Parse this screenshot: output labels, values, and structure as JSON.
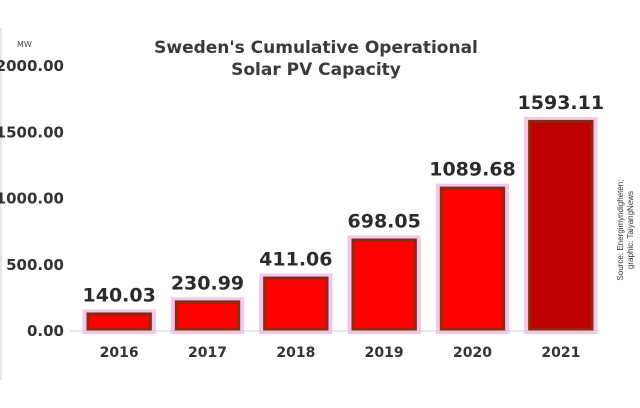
{
  "chart_data": {
    "type": "bar",
    "title": "Sweden's Cumulative Operational Solar PV Capacity",
    "title_lines": [
      "Sweden's Cumulative Operational",
      "Solar PV Capacity"
    ],
    "xlabel": "",
    "ylabel": "MW",
    "ylim": [
      0,
      2000
    ],
    "yticks": [
      "0.00",
      "500.00",
      "1000.00",
      "1500.00",
      "2000.00"
    ],
    "ytick_values": [
      0,
      500,
      1000,
      1500,
      2000
    ],
    "grid": false,
    "legend": "none",
    "categories": [
      "2016",
      "2017",
      "2018",
      "2019",
      "2020",
      "2021"
    ],
    "values": [
      140.03,
      230.99,
      411.06,
      698.05,
      1089.68,
      1593.11
    ],
    "data_labels": [
      "140.03",
      "230.99",
      "411.06",
      "698.05",
      "1089.68",
      "1593.11"
    ],
    "colors": {
      "bar": "#ff0000",
      "bar_highlight": "#c00000",
      "bar_edge": "#8b2a10",
      "bar_glow": "#f5c6ec"
    },
    "annotation": "Source: Energimyndigheten; graphic: TaiyangNews"
  }
}
